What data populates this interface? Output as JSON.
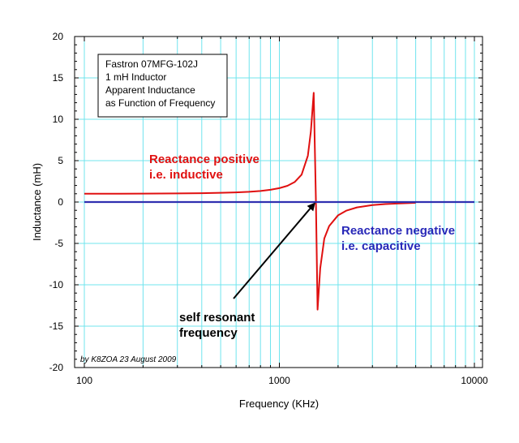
{
  "chart_data": {
    "type": "line",
    "xlabel": "Frequency (KHz)",
    "ylabel": "Inductance (mH)",
    "xscale": "log",
    "xlim": [
      100,
      10000
    ],
    "ylim": [
      -20,
      20
    ],
    "x_ticks": [
      "100",
      "1000",
      "10000"
    ],
    "y_ticks": [
      "20",
      "15",
      "10",
      "5",
      "0",
      "-5",
      "-10",
      "-15",
      "-20"
    ],
    "grid": true,
    "series": [
      {
        "id": "apparent_inductance",
        "color": "#e01010",
        "values": [
          [
            100,
            1.0
          ],
          [
            150,
            1.01
          ],
          [
            200,
            1.02
          ],
          [
            300,
            1.04
          ],
          [
            400,
            1.07
          ],
          [
            500,
            1.11
          ],
          [
            600,
            1.17
          ],
          [
            700,
            1.24
          ],
          [
            800,
            1.34
          ],
          [
            900,
            1.48
          ],
          [
            1000,
            1.68
          ],
          [
            1100,
            1.96
          ],
          [
            1200,
            2.43
          ],
          [
            1300,
            3.3
          ],
          [
            1400,
            5.6
          ],
          [
            1450,
            8.5
          ],
          [
            1500,
            13.2
          ],
          [
            1540,
            0.0
          ],
          [
            1570,
            -13.0
          ],
          [
            1620,
            -8.0
          ],
          [
            1700,
            -4.4
          ],
          [
            1800,
            -2.9
          ],
          [
            2000,
            -1.6
          ],
          [
            2200,
            -1.05
          ],
          [
            2500,
            -0.65
          ],
          [
            3000,
            -0.37
          ],
          [
            3500,
            -0.25
          ],
          [
            4000,
            -0.18
          ],
          [
            5000,
            -0.1
          ]
        ]
      },
      {
        "id": "zero_line",
        "color": "#3030b0",
        "values": [
          [
            100,
            0
          ],
          [
            10000,
            0
          ]
        ]
      }
    ],
    "info_box": [
      "Fastron 07MFG-102J",
      "1 mH Inductor",
      "Apparent Inductance",
      "as Function of Frequency"
    ],
    "annotations": {
      "positive_line1": "Reactance positive",
      "positive_line2": "i.e. inductive",
      "negative_line1": "Reactance negative",
      "negative_line2": "i.e. capacitive",
      "resonance_line1": "self resonant",
      "resonance_line2": "frequency",
      "resonance_point": [
        1540,
        0
      ],
      "credit": "by K8ZOA 23 August 2009"
    }
  }
}
